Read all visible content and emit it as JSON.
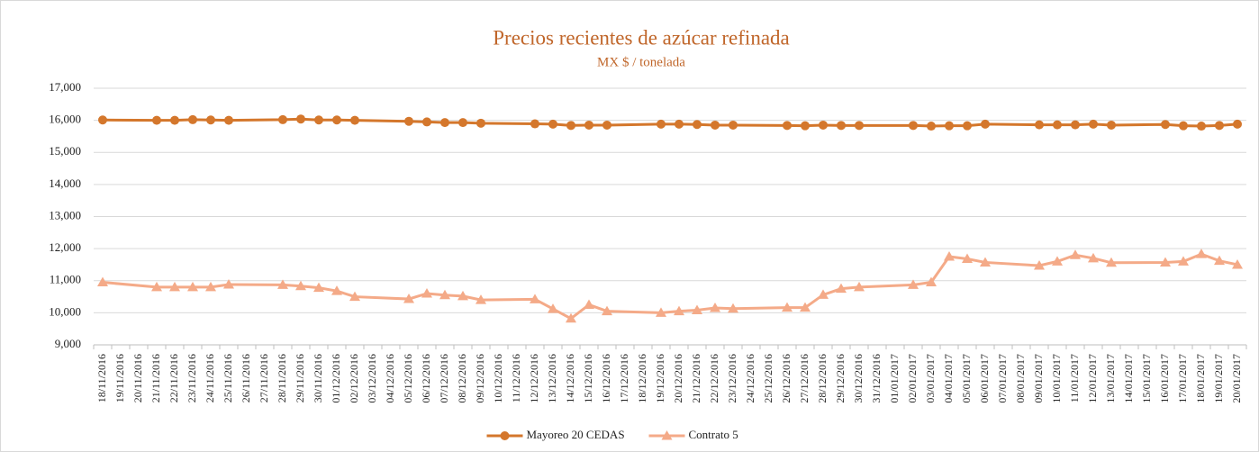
{
  "chart_data": {
    "type": "line",
    "title": "Precios recientes de azúcar refinada",
    "subtitle": "MX $ / tonelada",
    "categories": [
      "18/11/2016",
      "19/11/2016",
      "20/11/2016",
      "21/11/2016",
      "22/11/2016",
      "23/11/2016",
      "24/11/2016",
      "25/11/2016",
      "26/11/2016",
      "27/11/2016",
      "28/11/2016",
      "29/11/2016",
      "30/11/2016",
      "01/12/2016",
      "02/12/2016",
      "03/12/2016",
      "04/12/2016",
      "05/12/2016",
      "06/12/2016",
      "07/12/2016",
      "08/12/2016",
      "09/12/2016",
      "10/12/2016",
      "11/12/2016",
      "12/12/2016",
      "13/12/2016",
      "14/12/2016",
      "15/12/2016",
      "16/12/2016",
      "17/12/2016",
      "18/12/2016",
      "19/12/2016",
      "20/12/2016",
      "21/12/2016",
      "22/12/2016",
      "23/12/2016",
      "24/12/2016",
      "25/12/2016",
      "26/12/2016",
      "27/12/2016",
      "28/12/2016",
      "29/12/2016",
      "30/12/2016",
      "31/12/2016",
      "01/01/2017",
      "02/01/2017",
      "03/01/2017",
      "04/01/2017",
      "05/01/2017",
      "06/01/2017",
      "07/01/2017",
      "08/01/2017",
      "09/01/2017",
      "10/01/2017",
      "11/01/2017",
      "12/01/2017",
      "13/01/2017",
      "14/01/2017",
      "15/01/2017",
      "16/01/2017",
      "17/01/2017",
      "18/01/2017",
      "19/01/2017",
      "20/01/2017"
    ],
    "series": [
      {
        "name": "Mayoreo 20 CEDAS",
        "color": "#d4772c",
        "marker": "circle",
        "x": [
          "18/11/2016",
          "21/11/2016",
          "22/11/2016",
          "23/11/2016",
          "24/11/2016",
          "25/11/2016",
          "28/11/2016",
          "29/11/2016",
          "30/11/2016",
          "01/12/2016",
          "02/12/2016",
          "05/12/2016",
          "06/12/2016",
          "07/12/2016",
          "08/12/2016",
          "09/12/2016",
          "12/12/2016",
          "13/12/2016",
          "14/12/2016",
          "15/12/2016",
          "16/12/2016",
          "19/12/2016",
          "20/12/2016",
          "21/12/2016",
          "22/12/2016",
          "23/12/2016",
          "26/12/2016",
          "27/12/2016",
          "28/12/2016",
          "29/12/2016",
          "30/12/2016",
          "02/01/2017",
          "03/01/2017",
          "04/01/2017",
          "05/01/2017",
          "06/01/2017",
          "09/01/2017",
          "10/01/2017",
          "11/01/2017",
          "12/01/2017",
          "13/01/2017",
          "16/01/2017",
          "17/01/2017",
          "18/01/2017",
          "19/01/2017",
          "20/01/2017"
        ],
        "values": [
          16010,
          16000,
          16000,
          16020,
          16010,
          16000,
          16020,
          16040,
          16010,
          16010,
          16000,
          15970,
          15950,
          15930,
          15930,
          15910,
          15890,
          15880,
          15840,
          15850,
          15850,
          15880,
          15880,
          15870,
          15850,
          15850,
          15840,
          15830,
          15850,
          15840,
          15840,
          15840,
          15820,
          15830,
          15830,
          15880,
          15860,
          15860,
          15860,
          15880,
          15850,
          15870,
          15830,
          15820,
          15840,
          15880
        ]
      },
      {
        "name": "Contrato 5",
        "color": "#f4aa88",
        "marker": "triangle",
        "x": [
          "18/11/2016",
          "21/11/2016",
          "22/11/2016",
          "23/11/2016",
          "24/11/2016",
          "25/11/2016",
          "28/11/2016",
          "29/11/2016",
          "30/11/2016",
          "01/12/2016",
          "02/12/2016",
          "05/12/2016",
          "06/12/2016",
          "07/12/2016",
          "08/12/2016",
          "09/12/2016",
          "12/12/2016",
          "13/12/2016",
          "14/12/2016",
          "15/12/2016",
          "16/12/2016",
          "19/12/2016",
          "20/12/2016",
          "21/12/2016",
          "22/12/2016",
          "23/12/2016",
          "26/12/2016",
          "27/12/2016",
          "28/12/2016",
          "29/12/2016",
          "30/12/2016",
          "02/01/2017",
          "03/01/2017",
          "04/01/2017",
          "05/01/2017",
          "06/01/2017",
          "09/01/2017",
          "10/01/2017",
          "11/01/2017",
          "12/01/2017",
          "13/01/2017",
          "16/01/2017",
          "17/01/2017",
          "18/01/2017",
          "19/01/2017",
          "20/01/2017"
        ],
        "values": [
          10950,
          10800,
          10800,
          10800,
          10800,
          10880,
          10870,
          10830,
          10780,
          10680,
          10500,
          10430,
          10600,
          10550,
          10520,
          10400,
          10420,
          10120,
          9820,
          10250,
          10050,
          10000,
          10050,
          10080,
          10150,
          10130,
          10160,
          10160,
          10560,
          10750,
          10800,
          10870,
          10950,
          11750,
          11680,
          11570,
          11470,
          11600,
          11800,
          11700,
          11560,
          11570,
          11600,
          11830,
          11620,
          11500
        ]
      }
    ],
    "ylim": [
      9000,
      17000
    ],
    "yticks": [
      {
        "value": 9000,
        "label": "9,000"
      },
      {
        "value": 10000,
        "label": "10,000"
      },
      {
        "value": 11000,
        "label": "11,000"
      },
      {
        "value": 12000,
        "label": "12,000"
      },
      {
        "value": 13000,
        "label": "13,000"
      },
      {
        "value": 14000,
        "label": "14,000"
      },
      {
        "value": 15000,
        "label": "15,000"
      },
      {
        "value": 16000,
        "label": "16,000"
      },
      {
        "value": 17000,
        "label": "17,000"
      }
    ],
    "grid": true,
    "legend": "bottom"
  }
}
